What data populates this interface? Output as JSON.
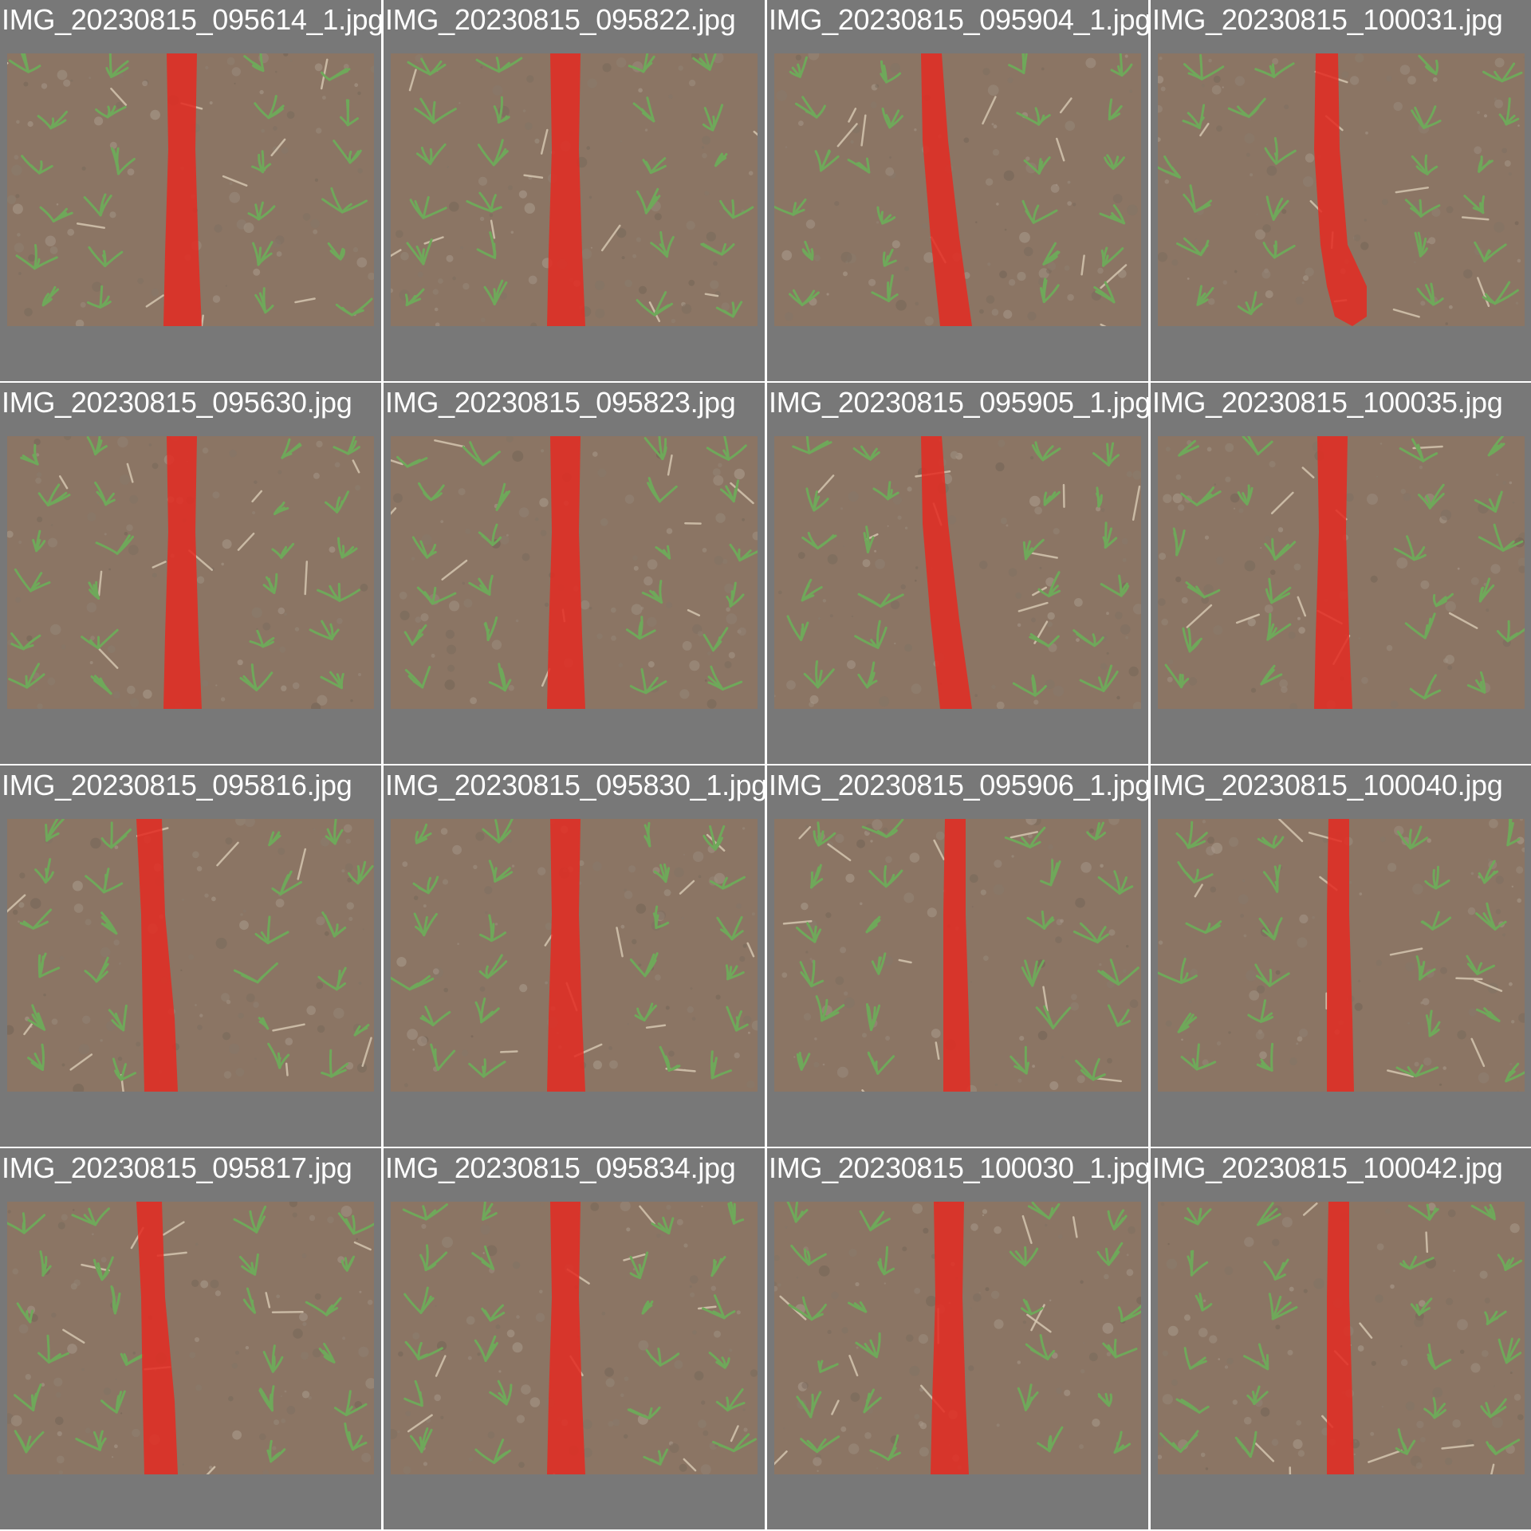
{
  "colors": {
    "grid_background": "#787878",
    "title_text": "#ffffff",
    "mask": "#e32b22",
    "soil": "#8b7564",
    "plant": "#6fa85a"
  },
  "tiles": [
    {
      "title": "IMG_20230815_095614_1.jpg",
      "mask_shape": "straight-center"
    },
    {
      "title": "IMG_20230815_095822.jpg",
      "mask_shape": "straight-center"
    },
    {
      "title": "IMG_20230815_095904_1.jpg",
      "mask_shape": "curve-right"
    },
    {
      "title": "IMG_20230815_100031.jpg",
      "mask_shape": "narrow-bottom-bulge"
    },
    {
      "title": "IMG_20230815_095630.jpg",
      "mask_shape": "straight-center"
    },
    {
      "title": "IMG_20230815_095823.jpg",
      "mask_shape": "straight-center"
    },
    {
      "title": "IMG_20230815_095905_1.jpg",
      "mask_shape": "curve-right"
    },
    {
      "title": "IMG_20230815_100035.jpg",
      "mask_shape": "straight-center"
    },
    {
      "title": "IMG_20230815_095816.jpg",
      "mask_shape": "straight-left"
    },
    {
      "title": "IMG_20230815_095830_1.jpg",
      "mask_shape": "straight-center"
    },
    {
      "title": "IMG_20230815_095906_1.jpg",
      "mask_shape": "narrow-center"
    },
    {
      "title": "IMG_20230815_100040.jpg",
      "mask_shape": "narrow-center"
    },
    {
      "title": "IMG_20230815_095817.jpg",
      "mask_shape": "straight-left"
    },
    {
      "title": "IMG_20230815_095834.jpg",
      "mask_shape": "straight-center"
    },
    {
      "title": "IMG_20230815_100030_1.jpg",
      "mask_shape": "straight-center"
    },
    {
      "title": "IMG_20230815_100042.jpg",
      "mask_shape": "narrow-center"
    }
  ]
}
